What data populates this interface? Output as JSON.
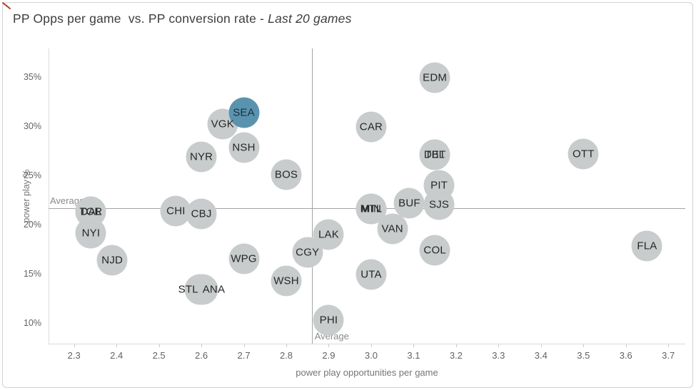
{
  "title": {
    "main": "PP Opps per game  vs. PP conversion rate - ",
    "italic": "Last 20 games"
  },
  "chart_data": {
    "type": "scatter",
    "title": "PP Opps per game vs. PP conversion rate - Last 20 games",
    "xlabel": "power play opportunities per game",
    "ylabel": "power play %",
    "xlim": [
      2.24,
      3.74
    ],
    "ylim": [
      8,
      38
    ],
    "x_ticks": [
      "2.3",
      "2.4",
      "2.5",
      "2.6",
      "2.7",
      "2.8",
      "2.9",
      "3.0",
      "3.1",
      "3.2",
      "3.3",
      "3.4",
      "3.5",
      "3.6",
      "3.7"
    ],
    "y_ticks": [
      {
        "value": 10,
        "label": "10%"
      },
      {
        "value": 15,
        "label": "15%"
      },
      {
        "value": 20,
        "label": "20%"
      },
      {
        "value": 25,
        "label": "25%"
      },
      {
        "value": 30,
        "label": "30%"
      },
      {
        "value": 35,
        "label": "35%"
      }
    ],
    "grid": false,
    "legend": "none",
    "average_label": "Average",
    "averages": {
      "x": 2.86,
      "y": 21.8
    },
    "colors": {
      "point": "#c8cccd",
      "highlight": "#5b93af",
      "label": "#262626",
      "highlight_label": "#14303e"
    },
    "points": [
      {
        "team": "NYI",
        "x": 2.34,
        "y": 19.2
      },
      {
        "team": "TOR",
        "x": 2.34,
        "y": 21.4
      },
      {
        "team": "DAL",
        "x": 2.34,
        "y": 21.4
      },
      {
        "team": "NJD",
        "x": 2.39,
        "y": 16.5
      },
      {
        "team": "CHI",
        "x": 2.54,
        "y": 21.5
      },
      {
        "team": "CBJ",
        "x": 2.6,
        "y": 21.2
      },
      {
        "team": "STL",
        "x": 2.596,
        "y": 13.5,
        "label_dx": -16
      },
      {
        "team": "ANA",
        "x": 2.604,
        "y": 13.5,
        "label_dx": 15
      },
      {
        "team": "WPG",
        "x": 2.7,
        "y": 16.6
      },
      {
        "team": "WSH",
        "x": 2.8,
        "y": 14.4
      },
      {
        "team": "PHI",
        "x": 2.9,
        "y": 10.4
      },
      {
        "team": "CGY",
        "x": 2.85,
        "y": 17.3
      },
      {
        "team": "LAK",
        "x": 2.9,
        "y": 19.1
      },
      {
        "team": "UTA",
        "x": 3.0,
        "y": 15.0
      },
      {
        "team": "MIN",
        "x": 3.0,
        "y": 21.7
      },
      {
        "team": "MTL",
        "x": 3.0,
        "y": 21.7
      },
      {
        "team": "VAN",
        "x": 3.05,
        "y": 19.7
      },
      {
        "team": "SJS",
        "x": 3.16,
        "y": 22.1
      },
      {
        "team": "PIT",
        "x": 3.16,
        "y": 24.1
      },
      {
        "team": "BUF",
        "x": 3.09,
        "y": 22.3
      },
      {
        "team": "COL",
        "x": 3.15,
        "y": 17.5
      },
      {
        "team": "DET",
        "x": 3.15,
        "y": 27.2
      },
      {
        "team": "TBL",
        "x": 3.15,
        "y": 27.2
      },
      {
        "team": "EDM",
        "x": 3.15,
        "y": 35.0
      },
      {
        "team": "CAR",
        "x": 3.0,
        "y": 30.0
      },
      {
        "team": "NYR",
        "x": 2.6,
        "y": 27.0
      },
      {
        "team": "NSH",
        "x": 2.7,
        "y": 27.9
      },
      {
        "team": "BOS",
        "x": 2.8,
        "y": 25.2
      },
      {
        "team": "OTT",
        "x": 3.5,
        "y": 27.3
      },
      {
        "team": "FLA",
        "x": 3.65,
        "y": 17.9
      },
      {
        "team": "VGK",
        "x": 2.65,
        "y": 30.3
      },
      {
        "team": "SEA",
        "x": 2.7,
        "y": 31.5,
        "highlight": true
      }
    ]
  }
}
